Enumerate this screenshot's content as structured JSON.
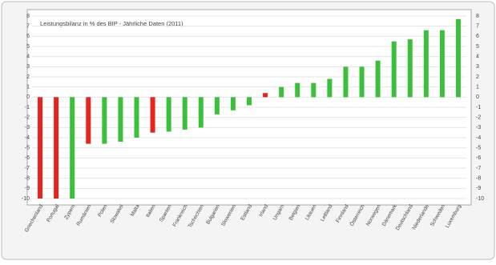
{
  "chart_data": {
    "type": "bar",
    "title": "Leistungsbilanz in % des BIP - Jährliche Daten (2011)",
    "categories": [
      "Griechenland",
      "Portugal",
      "Zypern",
      "Rumänien",
      "Polen",
      "Slowakei",
      "Malta",
      "Italien",
      "Spanien",
      "Frankreich",
      "Tschechien",
      "Bulgarien",
      "Slowenien",
      "Estland",
      "Irland",
      "Ungarn",
      "Belgien",
      "Litauen",
      "Lettland",
      "Finnland",
      "Österreich",
      "Norwegen",
      "Dänemark",
      "Deutschland",
      "Niederlande",
      "Schweden",
      "Luxemburg"
    ],
    "values": [
      -10,
      -10,
      -10,
      -4.6,
      -4.6,
      -4.4,
      -4,
      -3.5,
      -3.4,
      -3.2,
      -3,
      -1.7,
      -1.3,
      -0.8,
      0.4,
      1,
      1.4,
      1.4,
      1.8,
      3,
      3,
      3.6,
      5.5,
      5.7,
      6.6,
      6.6,
      7.7
    ],
    "colors": [
      "#e8231d",
      "#e8231d",
      "#3cc03c",
      "#e8231d",
      "#3cc03c",
      "#3cc03c",
      "#3cc03c",
      "#e8231d",
      "#3cc03c",
      "#3cc03c",
      "#3cc03c",
      "#3cc03c",
      "#3cc03c",
      "#3cc03c",
      "#e8231d",
      "#3cc03c",
      "#3cc03c",
      "#3cc03c",
      "#3cc03c",
      "#3cc03c",
      "#3cc03c",
      "#3cc03c",
      "#3cc03c",
      "#3cc03c",
      "#3cc03c",
      "#3cc03c",
      "#3cc03c"
    ],
    "ylim": [
      -10,
      8
    ],
    "yticks": [
      -10,
      -9,
      -8,
      -7,
      -6,
      -5,
      -4,
      -3,
      -2,
      -1,
      0,
      1,
      2,
      3,
      4,
      5,
      6,
      7,
      8
    ],
    "grid": true
  }
}
